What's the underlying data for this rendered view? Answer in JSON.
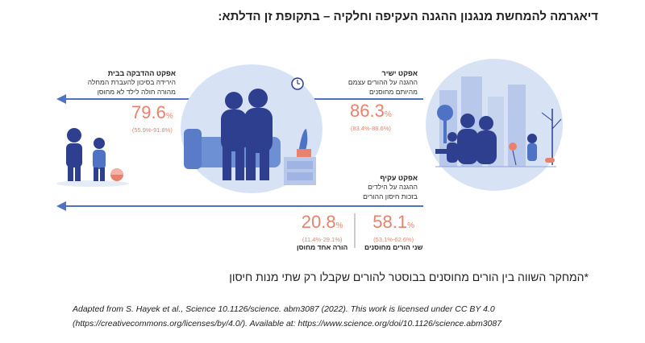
{
  "title": "דיאגרמה להמחשת מנגנון ההגנה העקיפה וחלקיה – בתקופת זן הדלתא:",
  "direct": {
    "heading": "אפקט ישיר",
    "desc1": "ההגנה על ההורים עצמם",
    "desc2": "מהיותם מחוסנים",
    "value": "86.3",
    "unit": "%",
    "ci": "(83.4%-88.6%)"
  },
  "home": {
    "heading": "אפקט ההדבקה בבית",
    "desc1": "הירידה בסיכון להעברת המחלה",
    "desc2": "מהורה חולה לילד לא מחוסן",
    "value": "79.6",
    "unit": "%",
    "ci": "(55.9%-91.8%)"
  },
  "indirect": {
    "heading": "אפקט עקיף",
    "desc1": "ההגנה על הילדים",
    "desc2": "בזכות חיסון ההורים",
    "two_parents": {
      "value": "58.1",
      "unit": "%",
      "ci": "(53.1%-62.6%)",
      "label": "שני הורים מחוסנים"
    },
    "one_parent": {
      "value": "20.8",
      "unit": "%",
      "ci": "(11.4%-29.1%)",
      "label": "הורה אחד מחוסן"
    }
  },
  "note": "*המחקר השווה בין הורים מחוסנים בבוסטר להורים שקבלו רק שתי מנות חיסון",
  "credit_line1": "Adapted from S. Hayek et al., Science 10.1126/science. abm3087 (2022). This work is licensed under CC BY 4.0",
  "credit_line2": "(https://creativecommons.org/licenses/by/4.0/). Available at: https://www.science.org/doi/10.1126/science.abm3087",
  "colors": {
    "arrow": "#4f73c4",
    "accent": "#e8826e",
    "figure": "#2f3f8f",
    "light": "#d7e2f5"
  }
}
